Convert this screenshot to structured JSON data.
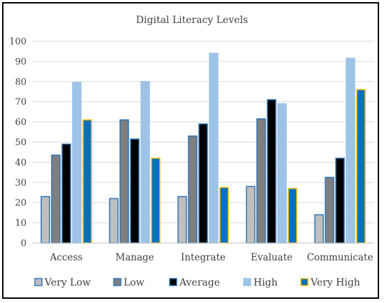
{
  "chart_data": {
    "type": "bar",
    "title": "Digital Literacy Levels",
    "xlabel": "",
    "ylabel": "",
    "ylim": [
      0,
      100
    ],
    "yticks": [
      0,
      10,
      20,
      30,
      40,
      50,
      60,
      70,
      80,
      90,
      100
    ],
    "grid": true,
    "legend_position": "bottom",
    "categories": [
      "Access",
      "Manage",
      "Integrate",
      "Evaluate",
      "Communicate"
    ],
    "series": [
      {
        "name": "Very Low",
        "color": "#bfbfbf",
        "edge": "#2e75b6",
        "values": [
          23,
          22,
          23,
          28,
          14
        ]
      },
      {
        "name": "Low",
        "color": "#7f7f7f",
        "edge": "#2e75b6",
        "values": [
          43.5,
          61,
          53,
          61.5,
          32.5
        ]
      },
      {
        "name": "Average",
        "color": "#000000",
        "edge": "#2e75b6",
        "values": [
          49,
          51.5,
          59,
          71,
          42
        ]
      },
      {
        "name": "High",
        "color": "#9dc3e6",
        "edge": "#9dc3e6",
        "values": [
          79.5,
          80,
          94,
          69,
          91.5
        ]
      },
      {
        "name": "Very High",
        "color": "#0070c0",
        "edge": "#ffc000",
        "values": [
          61,
          42,
          27.5,
          27,
          76
        ]
      }
    ]
  }
}
